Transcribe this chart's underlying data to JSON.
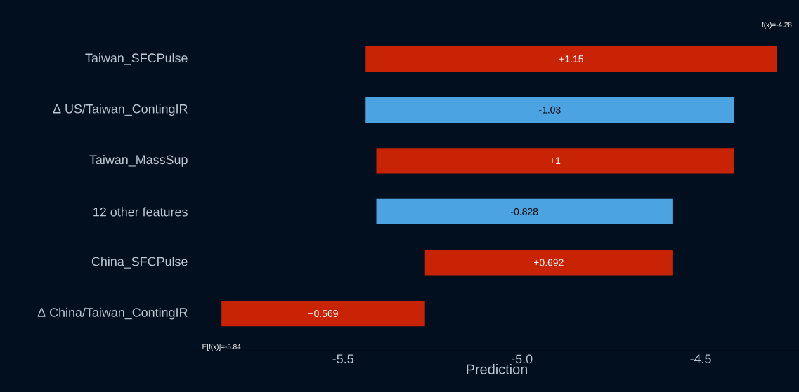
{
  "chart_data": {
    "type": "bar",
    "orientation": "horizontal",
    "categories": [
      "Taiwan_SFCPulse",
      "Δ US/Taiwan_ContingIR",
      "Taiwan_MassSup",
      "12 other features",
      "China_SFCPulse",
      "Δ China/Taiwan_ContingIR"
    ],
    "values": [
      1.15,
      -1.03,
      1,
      -0.828,
      0.692,
      0.569
    ],
    "base": [
      -5.437,
      -4.407,
      -5.407,
      -4.579,
      -5.271,
      -5.84
    ],
    "value_labels": [
      "+1.15",
      "-1.03",
      "+1",
      "-0.828",
      "+0.692",
      "+0.569"
    ],
    "colors": [
      "#c82305",
      "#4ba3e2",
      "#c82305",
      "#4ba3e2",
      "#c82305",
      "#c82305"
    ],
    "xlim": [
      -5.915,
      -4.225
    ],
    "xticks": [
      -5.5,
      {
        "value": -5.0,
        "label": "-5.0"
      },
      -4.5
    ],
    "xlabel": "Prediction",
    "annotations": [
      "f(x)=-4.28",
      "E[f(x)]=-5.84"
    ]
  }
}
